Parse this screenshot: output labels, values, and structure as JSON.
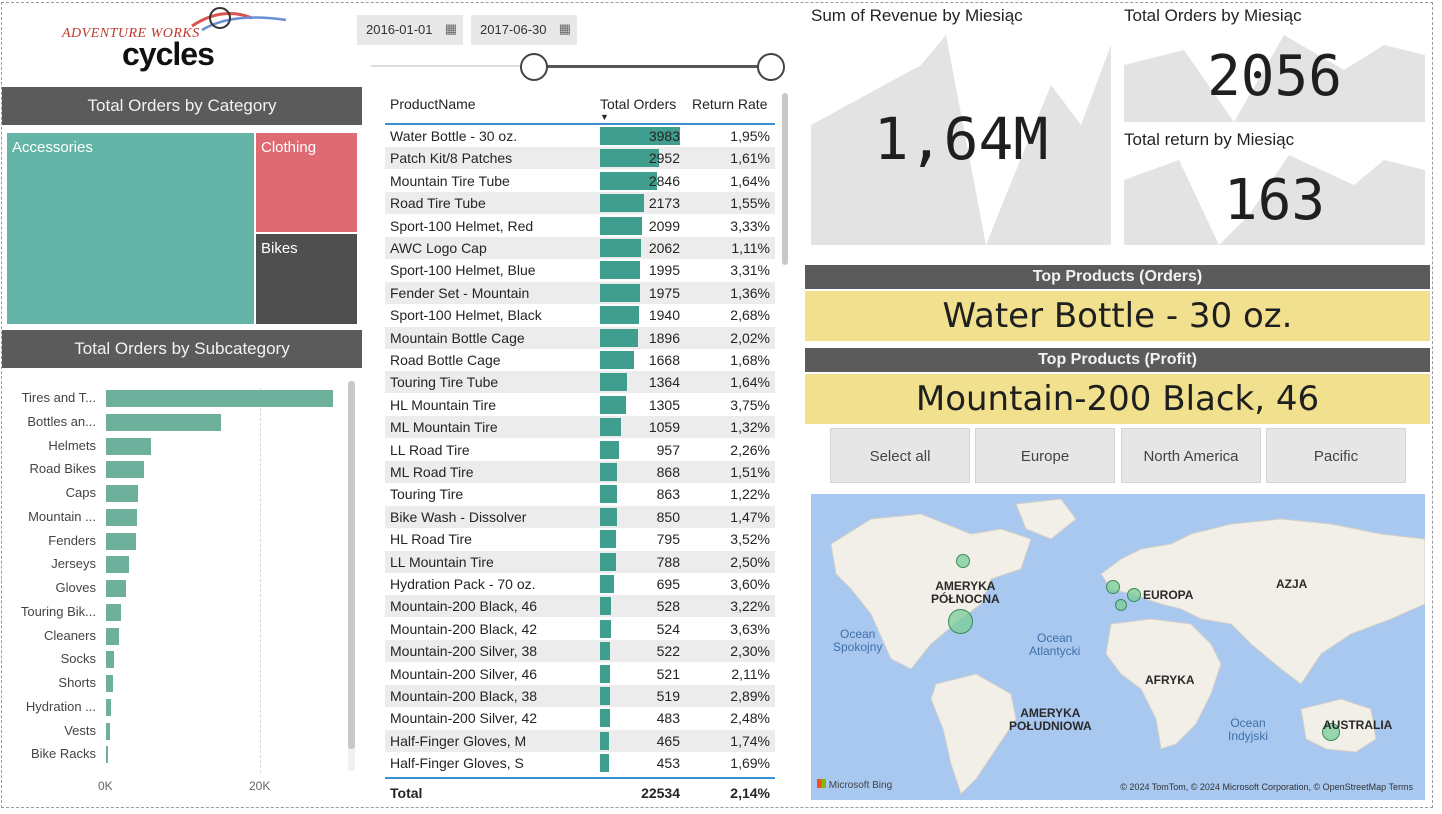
{
  "logo": {
    "line1": "ADVENTURE WORKS",
    "line2": "cycles"
  },
  "date_filter": {
    "start": "2016-01-01",
    "end": "2017-06-30"
  },
  "category_chart": {
    "title": "Total Orders by Category",
    "items": [
      {
        "label": "Accessories",
        "color": "#64b5a8"
      },
      {
        "label": "Clothing",
        "color": "#e06a72"
      },
      {
        "label": "Bikes",
        "color": "#4f4f4f"
      }
    ]
  },
  "chart_data": {
    "type": "bar",
    "title": "Total Orders by Subcategory",
    "categories": [
      "Tires and T...",
      "Bottles an...",
      "Helmets",
      "Road Bikes",
      "Caps",
      "Mountain ...",
      "Fenders",
      "Jerseys",
      "Gloves",
      "Touring Bik...",
      "Cleaners",
      "Socks",
      "Shorts",
      "Hydration ...",
      "Vests",
      "Bike Racks"
    ],
    "values": [
      29500,
      14900,
      5900,
      4900,
      4100,
      4000,
      3900,
      3000,
      2600,
      2000,
      1700,
      1000,
      900,
      700,
      500,
      300
    ],
    "xticks": [
      "0K",
      "20K"
    ],
    "xlim": [
      0,
      32000
    ],
    "color": "#6eb09c"
  },
  "table": {
    "headers": {
      "name": "ProductName",
      "orders": "Total Orders",
      "rate": "Return Rate"
    },
    "max_orders": 3983,
    "rows": [
      {
        "name": "Water Bottle - 30 oz.",
        "orders": "3983",
        "rate": "1,95%",
        "v": 3983
      },
      {
        "name": "Patch Kit/8 Patches",
        "orders": "2952",
        "rate": "1,61%",
        "v": 2952
      },
      {
        "name": "Mountain Tire Tube",
        "orders": "2846",
        "rate": "1,64%",
        "v": 2846
      },
      {
        "name": "Road Tire Tube",
        "orders": "2173",
        "rate": "1,55%",
        "v": 2173
      },
      {
        "name": "Sport-100 Helmet, Red",
        "orders": "2099",
        "rate": "3,33%",
        "v": 2099
      },
      {
        "name": "AWC Logo Cap",
        "orders": "2062",
        "rate": "1,11%",
        "v": 2062
      },
      {
        "name": "Sport-100 Helmet, Blue",
        "orders": "1995",
        "rate": "3,31%",
        "v": 1995
      },
      {
        "name": "Fender Set - Mountain",
        "orders": "1975",
        "rate": "1,36%",
        "v": 1975
      },
      {
        "name": "Sport-100 Helmet, Black",
        "orders": "1940",
        "rate": "2,68%",
        "v": 1940
      },
      {
        "name": "Mountain Bottle Cage",
        "orders": "1896",
        "rate": "2,02%",
        "v": 1896
      },
      {
        "name": "Road Bottle Cage",
        "orders": "1668",
        "rate": "1,68%",
        "v": 1668
      },
      {
        "name": "Touring Tire Tube",
        "orders": "1364",
        "rate": "1,64%",
        "v": 1364
      },
      {
        "name": "HL Mountain Tire",
        "orders": "1305",
        "rate": "3,75%",
        "v": 1305
      },
      {
        "name": "ML Mountain Tire",
        "orders": "1059",
        "rate": "1,32%",
        "v": 1059
      },
      {
        "name": "LL Road Tire",
        "orders": "957",
        "rate": "2,26%",
        "v": 957
      },
      {
        "name": "ML Road Tire",
        "orders": "868",
        "rate": "1,51%",
        "v": 868
      },
      {
        "name": "Touring Tire",
        "orders": "863",
        "rate": "1,22%",
        "v": 863
      },
      {
        "name": "Bike Wash - Dissolver",
        "orders": "850",
        "rate": "1,47%",
        "v": 850
      },
      {
        "name": "HL Road Tire",
        "orders": "795",
        "rate": "3,52%",
        "v": 795
      },
      {
        "name": "LL Mountain Tire",
        "orders": "788",
        "rate": "2,50%",
        "v": 788
      },
      {
        "name": "Hydration Pack - 70 oz.",
        "orders": "695",
        "rate": "3,60%",
        "v": 695
      },
      {
        "name": "Mountain-200 Black, 46",
        "orders": "528",
        "rate": "3,22%",
        "v": 528
      },
      {
        "name": "Mountain-200 Black, 42",
        "orders": "524",
        "rate": "3,63%",
        "v": 524
      },
      {
        "name": "Mountain-200 Silver, 38",
        "orders": "522",
        "rate": "2,30%",
        "v": 522
      },
      {
        "name": "Mountain-200 Silver, 46",
        "orders": "521",
        "rate": "2,11%",
        "v": 521
      },
      {
        "name": "Mountain-200 Black, 38",
        "orders": "519",
        "rate": "2,89%",
        "v": 519
      },
      {
        "name": "Mountain-200 Silver, 42",
        "orders": "483",
        "rate": "2,48%",
        "v": 483
      },
      {
        "name": "Half-Finger Gloves, M",
        "orders": "465",
        "rate": "1,74%",
        "v": 465
      },
      {
        "name": "Half-Finger Gloves, S",
        "orders": "453",
        "rate": "1,69%",
        "v": 453
      }
    ],
    "total": {
      "label": "Total",
      "orders": "22534",
      "rate": "2,14%"
    }
  },
  "kpis": {
    "revenue": {
      "title": "Sum of Revenue by Miesiąc",
      "value": "1,64M"
    },
    "orders": {
      "title": "Total Orders by Miesiąc",
      "value": "2056"
    },
    "returns": {
      "title": "Total return by Miesiąc",
      "value": "163"
    }
  },
  "top_orders": {
    "title": "Top Products (Orders)",
    "value": "Water Bottle - 30 oz."
  },
  "top_profit": {
    "title": "Top Products (Profit)",
    "value": "Mountain-200 Black, 46"
  },
  "region_slicer": [
    "Select all",
    "Europe",
    "North America",
    "Pacific"
  ],
  "map": {
    "labels": {
      "na": "AMERYKA\nPÓŁNOCNA",
      "eu": "EUROPA",
      "asia": "AZJA",
      "africa": "AFRYKA",
      "sa": "AMERYKA\nPOŁUDNIOWA",
      "aus": "AUSTRALIA",
      "pacific": "Ocean\nSpokojny",
      "atlantic": "Ocean\nAtlantycki",
      "indian": "Ocean\nIndyjski"
    },
    "bing": "Microsoft Bing",
    "copyright": "© 2024 TomTom, © 2024 Microsoft Corporation, © OpenStreetMap  Terms",
    "ocean_color": "#a8c8f0",
    "land_color": "#f1efe8"
  }
}
